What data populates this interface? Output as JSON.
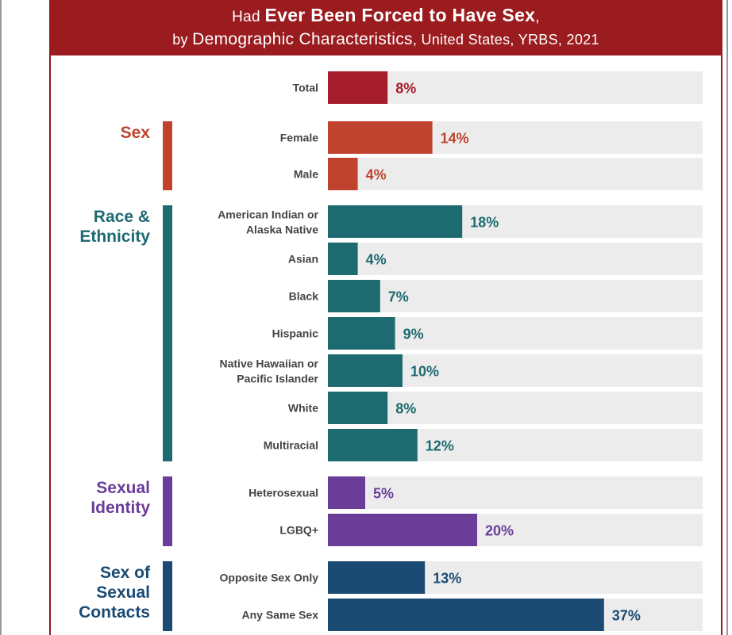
{
  "header": {
    "line1_prefix": "Had ",
    "line1_bold": "Ever Been Forced to Have Sex",
    "line1_suffix": ",",
    "line2_prefix": "by ",
    "line2_bold": "Demographic Characteristics",
    "line2_suffix": ", United States, YRBS, 2021"
  },
  "colors": {
    "header": "#9b1c1f",
    "track": "#ececec",
    "total": "#a51c2a",
    "sex": "#c0432f",
    "race": "#1d6a70",
    "identity": "#6a3d98",
    "contacts": "#1b4a72"
  },
  "chart_data": {
    "type": "bar",
    "orientation": "horizontal",
    "value_unit": "%",
    "xlim": [
      0,
      100
    ],
    "groups": [
      {
        "name": "",
        "color_key": "total",
        "items": [
          {
            "label": [
              "Total"
            ],
            "value": 8
          }
        ]
      },
      {
        "name": [
          "Sex"
        ],
        "color_key": "sex",
        "items": [
          {
            "label": [
              "Female"
            ],
            "value": 14
          },
          {
            "label": [
              "Male"
            ],
            "value": 4
          }
        ]
      },
      {
        "name": [
          "Race &",
          "Ethnicity"
        ],
        "color_key": "race",
        "items": [
          {
            "label": [
              "American Indian or",
              "Alaska Native"
            ],
            "value": 18
          },
          {
            "label": [
              "Asian"
            ],
            "value": 4
          },
          {
            "label": [
              "Black"
            ],
            "value": 7
          },
          {
            "label": [
              "Hispanic"
            ],
            "value": 9
          },
          {
            "label": [
              "Native Hawaiian or",
              "Pacific Islander"
            ],
            "value": 10
          },
          {
            "label": [
              "White"
            ],
            "value": 8
          },
          {
            "label": [
              "Multiracial"
            ],
            "value": 12
          }
        ]
      },
      {
        "name": [
          "Sexual",
          "Identity"
        ],
        "color_key": "identity",
        "items": [
          {
            "label": [
              "Heterosexual"
            ],
            "value": 5
          },
          {
            "label": [
              "LGBQ+"
            ],
            "value": 20
          }
        ]
      },
      {
        "name": [
          "Sex of",
          "Sexual",
          "Contacts"
        ],
        "color_key": "contacts",
        "items": [
          {
            "label": [
              "Opposite Sex Only"
            ],
            "value": 13
          },
          {
            "label": [
              "Any Same Sex"
            ],
            "value": 37
          }
        ]
      }
    ]
  }
}
